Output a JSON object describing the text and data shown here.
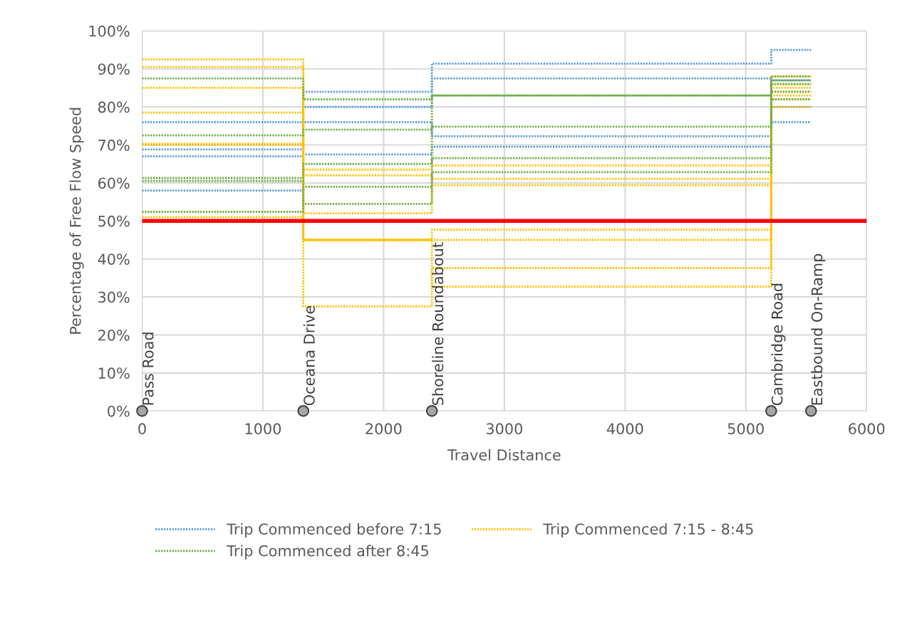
{
  "chart_data": {
    "type": "step",
    "xlabel": "Travel Distance",
    "ylabel": "Percentage of Free Flow Speed",
    "x": [
      0,
      1335,
      2400,
      5210,
      5540
    ],
    "xlim": [
      0,
      6000
    ],
    "xticks": [
      0,
      1000,
      2000,
      3000,
      4000,
      5000,
      6000
    ],
    "ylim": [
      0,
      100
    ],
    "yticks": [
      {
        "value": 0,
        "label": "0%"
      },
      {
        "value": 10,
        "label": "10%"
      },
      {
        "value": 20,
        "label": "20%"
      },
      {
        "value": 30,
        "label": "30%"
      },
      {
        "value": 40,
        "label": "40%"
      },
      {
        "value": 50,
        "label": "50%"
      },
      {
        "value": 60,
        "label": "60%"
      },
      {
        "value": 70,
        "label": "70%"
      },
      {
        "value": 80,
        "label": "80%"
      },
      {
        "value": 90,
        "label": "90%"
      },
      {
        "value": 100,
        "label": "100%"
      }
    ],
    "grid": true,
    "legend": "bottom",
    "line_style": "dotted",
    "marker": "none",
    "ref_lines": [
      {
        "axis": "y",
        "value": 50,
        "color": "#ff0000",
        "line_style": "solid"
      }
    ],
    "annotations": [
      {
        "text": "Pass Road",
        "x": 0,
        "y": 0
      },
      {
        "text": "Oceana Drive",
        "x": 1335,
        "y": 0
      },
      {
        "text": "Shoreline Roundabout",
        "x": 2400,
        "y": 0
      },
      {
        "text": "Cambridge Road",
        "x": 5210,
        "y": 0
      },
      {
        "text": "Eastbound On-Ramp",
        "x": 5540,
        "y": 0
      }
    ],
    "series": [
      {
        "name": "Trip Commenced before 7:15",
        "color": "#5b9bd5",
        "values": [
          76,
          84,
          91.4,
          95,
          95
        ]
      },
      {
        "color": "#5b9bd5",
        "values": [
          68.8,
          80,
          87.5,
          87,
          87
        ]
      },
      {
        "color": "#5b9bd5",
        "values": [
          67,
          76,
          72.3,
          80,
          80
        ]
      },
      {
        "color": "#5b9bd5",
        "values": [
          58,
          67.5,
          69.5,
          76,
          76
        ]
      },
      {
        "name": "Trip Commenced 7:15 - 8:45",
        "color": "#ffc000",
        "values": [
          92.5,
          63.5,
          64.6,
          86,
          86
        ]
      },
      {
        "color": "#ffc000",
        "values": [
          90.5,
          62,
          61.1,
          84,
          84
        ]
      },
      {
        "color": "#ffc000",
        "values": [
          85,
          52,
          59.4,
          82,
          82
        ]
      },
      {
        "color": "#ffc000",
        "values": [
          78.5,
          45,
          47.7,
          83,
          83
        ]
      },
      {
        "color": "#ffc000",
        "values": [
          70.3,
          45,
          45,
          80,
          80
        ]
      },
      {
        "color": "#ffc000",
        "values": [
          70,
          27.5,
          37.6,
          85,
          85
        ]
      },
      {
        "color": "#ffc000",
        "values": [
          51,
          45,
          32.7,
          88,
          88
        ]
      },
      {
        "name": "Trip Commenced after 8:45",
        "color": "#70ad47",
        "values": [
          87.5,
          82,
          83,
          88,
          88
        ]
      },
      {
        "color": "#70ad47",
        "values": [
          72.5,
          74,
          74.8,
          87,
          87
        ]
      },
      {
        "color": "#70ad47",
        "values": [
          61.3,
          65,
          66.5,
          86,
          86
        ]
      },
      {
        "color": "#70ad47",
        "values": [
          52.4,
          59,
          62.8,
          82,
          82
        ]
      },
      {
        "color": "#70ad47",
        "values": [
          60.5,
          54.5,
          83,
          84,
          84
        ]
      },
      {
        "type": "scatter",
        "marker": "circle",
        "color": "#a5a5a5",
        "x": [
          0,
          1335,
          2400,
          5210,
          5540
        ],
        "values": [
          0,
          0,
          0,
          0,
          0
        ]
      }
    ]
  }
}
